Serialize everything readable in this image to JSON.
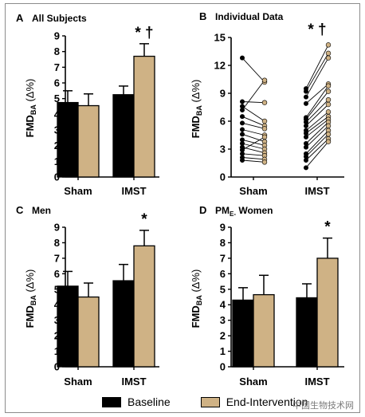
{
  "legend": {
    "baseline_label": "Baseline",
    "end_label": "End-Intervention",
    "colors": {
      "baseline": "#000000",
      "end": "#cfb285"
    }
  },
  "watermark": "中国生物技术网",
  "chart_data": [
    {
      "type": "bar",
      "panel_letter": "A",
      "title": "All Subjects",
      "ylabel": "FMDBA (Δ%)",
      "ylim": [
        0,
        9
      ],
      "yticks": [
        0,
        1,
        2,
        3,
        4,
        5,
        6,
        7,
        8,
        9
      ],
      "categories": [
        "Sham",
        "IMST"
      ],
      "series": [
        {
          "name": "Baseline",
          "values": [
            4.75,
            5.25
          ],
          "errors": [
            0.75,
            0.55
          ]
        },
        {
          "name": "End-Intervention",
          "values": [
            4.55,
            7.7
          ],
          "errors": [
            0.75,
            0.8
          ]
        }
      ],
      "annotations": [
        {
          "category": "IMST",
          "text": "* †"
        }
      ]
    },
    {
      "type": "line",
      "panel_letter": "B",
      "title": "Individual Data",
      "ylabel": "FMDBA (Δ%)",
      "ylim": [
        0,
        15
      ],
      "yticks": [
        0,
        3,
        6,
        9,
        12,
        15
      ],
      "categories": [
        "Sham",
        "IMST"
      ],
      "paired": {
        "Sham": [
          [
            12.8,
            10.2
          ],
          [
            8.1,
            8.0
          ],
          [
            7.6,
            6.0
          ],
          [
            7.2,
            10.4
          ],
          [
            6.5,
            5.5
          ],
          [
            5.8,
            5.2
          ],
          [
            5.1,
            4.5
          ],
          [
            4.6,
            3.8
          ],
          [
            4.0,
            3.4
          ],
          [
            3.6,
            3.0
          ],
          [
            3.2,
            2.6
          ],
          [
            2.9,
            4.3
          ],
          [
            2.5,
            2.3
          ],
          [
            2.1,
            1.9
          ],
          [
            1.8,
            1.6
          ]
        ],
        "IMST": [
          [
            9.5,
            14.2
          ],
          [
            9.2,
            13.3
          ],
          [
            8.6,
            12.8
          ],
          [
            7.9,
            10.0
          ],
          [
            6.4,
            9.8
          ],
          [
            6.2,
            9.2
          ],
          [
            5.9,
            8.3
          ],
          [
            5.5,
            7.8
          ],
          [
            5.0,
            7.0
          ],
          [
            4.7,
            6.5
          ],
          [
            4.3,
            6.2
          ],
          [
            3.6,
            5.9
          ],
          [
            3.2,
            5.5
          ],
          [
            2.5,
            5.0
          ],
          [
            2.2,
            4.6
          ],
          [
            1.8,
            4.1
          ],
          [
            1.0,
            3.8
          ]
        ]
      },
      "annotations": [
        {
          "category": "IMST",
          "text": "* †"
        }
      ]
    },
    {
      "type": "bar",
      "panel_letter": "C",
      "title": "Men",
      "ylabel": "FMDBA (Δ%)",
      "ylim": [
        0,
        9
      ],
      "yticks": [
        0,
        1,
        2,
        3,
        4,
        5,
        6,
        7,
        8,
        9
      ],
      "categories": [
        "Sham",
        "IMST"
      ],
      "series": [
        {
          "name": "Baseline",
          "values": [
            5.2,
            5.55
          ],
          "errors": [
            0.95,
            1.05
          ]
        },
        {
          "name": "End-Intervention",
          "values": [
            4.5,
            7.8
          ],
          "errors": [
            0.9,
            1.0
          ]
        }
      ],
      "annotations": [
        {
          "category": "IMST",
          "text": "*"
        }
      ]
    },
    {
      "type": "bar",
      "panel_letter": "D",
      "title": "PME- Women",
      "ylabel": "FMDBA (Δ%)",
      "ylim": [
        0,
        9
      ],
      "yticks": [
        0,
        1,
        2,
        3,
        4,
        5,
        6,
        7,
        8,
        9
      ],
      "categories": [
        "Sham",
        "IMST"
      ],
      "series": [
        {
          "name": "Baseline",
          "values": [
            4.3,
            4.45
          ],
          "errors": [
            0.8,
            0.9
          ]
        },
        {
          "name": "End-Intervention",
          "values": [
            4.65,
            7.0
          ],
          "errors": [
            1.25,
            1.3
          ]
        }
      ],
      "annotations": [
        {
          "category": "IMST",
          "text": "*"
        }
      ]
    }
  ]
}
